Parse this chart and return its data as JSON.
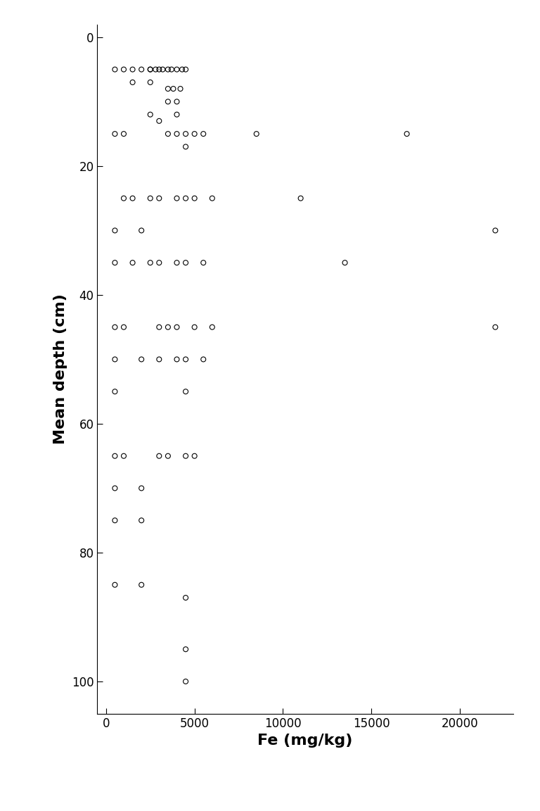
{
  "fe": [
    500,
    1000,
    1500,
    2000,
    2500,
    2800,
    3000,
    3200,
    3500,
    3700,
    4000,
    4300,
    4500,
    2500,
    1500,
    2500,
    3500,
    3800,
    4200,
    3500,
    4000,
    2500,
    4000,
    3000,
    500,
    1000,
    3500,
    4000,
    4500,
    5000,
    5500,
    8500,
    17000,
    4500,
    1000,
    1500,
    2500,
    3000,
    4000,
    4500,
    5000,
    6000,
    11000,
    500,
    2000,
    22000,
    500,
    1500,
    2500,
    3000,
    4000,
    4500,
    5500,
    13500,
    500,
    1000,
    3000,
    3500,
    4000,
    5000,
    6000,
    22000,
    500,
    2000,
    3000,
    4000,
    4500,
    5500,
    500,
    4500,
    500,
    1000,
    3000,
    3500,
    4500,
    5000,
    500,
    2000,
    500,
    2000,
    500,
    2000,
    4500,
    4500,
    4500
  ],
  "depth": [
    5,
    5,
    5,
    5,
    5,
    5,
    5,
    5,
    5,
    5,
    5,
    5,
    5,
    5,
    7,
    7,
    8,
    8,
    8,
    10,
    10,
    12,
    12,
    13,
    15,
    15,
    15,
    15,
    15,
    15,
    15,
    15,
    15,
    17,
    25,
    25,
    25,
    25,
    25,
    25,
    25,
    25,
    25,
    30,
    30,
    30,
    35,
    35,
    35,
    35,
    35,
    35,
    35,
    35,
    45,
    45,
    45,
    45,
    45,
    45,
    45,
    45,
    50,
    50,
    50,
    50,
    50,
    50,
    55,
    55,
    65,
    65,
    65,
    65,
    65,
    65,
    70,
    70,
    75,
    75,
    85,
    85,
    87,
    95,
    100
  ],
  "xlim": [
    -500,
    23000
  ],
  "ylim": [
    -2,
    105
  ],
  "xticks": [
    0,
    5000,
    10000,
    15000,
    20000
  ],
  "xticklabels": [
    "0",
    "5000",
    "10000",
    "15000",
    "20000"
  ],
  "yticks": [
    0,
    20,
    40,
    60,
    80,
    100
  ],
  "xlabel": "Fe (mg/kg)",
  "ylabel": "Mean depth (cm)",
  "background_color": "#ffffff",
  "marker_size": 5,
  "marker_color": "none",
  "marker_edgecolor": "black",
  "marker_edgewidth": 0.8
}
